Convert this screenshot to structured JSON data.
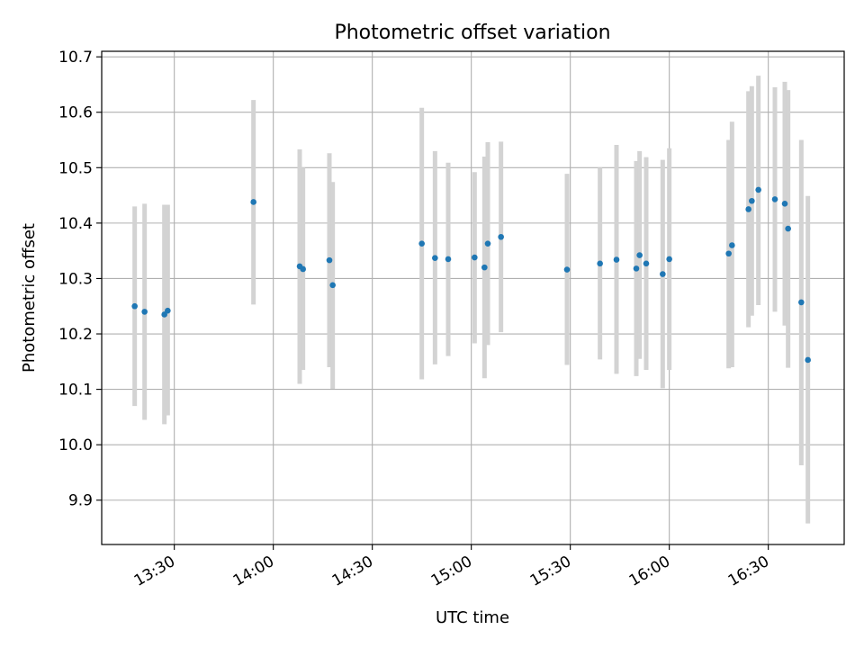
{
  "chart_data": {
    "type": "scatter",
    "title": "Photometric offset variation",
    "xlabel": "UTC time",
    "ylabel": "Photometric offset",
    "xlim": [
      "13:08",
      "16:53"
    ],
    "ylim": [
      9.82,
      10.71
    ],
    "x_ticks": [
      "13:30",
      "14:00",
      "14:30",
      "15:00",
      "15:30",
      "16:00",
      "16:30"
    ],
    "y_ticks": [
      9.9,
      10.0,
      10.1,
      10.2,
      10.3,
      10.4,
      10.5,
      10.6,
      10.7
    ],
    "y_tick_labels": [
      "9.9",
      "10.0",
      "10.1",
      "10.2",
      "10.3",
      "10.4",
      "10.5",
      "10.6",
      "10.7"
    ],
    "grid": true,
    "marker_color": "#1f77b4",
    "errorbar_color": "#d3d3d3",
    "points": [
      {
        "t": "13:18",
        "y": 10.25,
        "lo": 10.07,
        "hi": 10.43
      },
      {
        "t": "13:21",
        "y": 10.24,
        "lo": 10.045,
        "hi": 10.435
      },
      {
        "t": "13:27",
        "y": 10.235,
        "lo": 10.037,
        "hi": 10.433
      },
      {
        "t": "13:28",
        "y": 10.242,
        "lo": 10.053,
        "hi": 10.433
      },
      {
        "t": "13:54",
        "y": 10.438,
        "lo": 10.253,
        "hi": 10.622
      },
      {
        "t": "14:08",
        "y": 10.322,
        "lo": 10.11,
        "hi": 10.533
      },
      {
        "t": "14:09",
        "y": 10.317,
        "lo": 10.135,
        "hi": 10.5
      },
      {
        "t": "14:17",
        "y": 10.333,
        "lo": 10.14,
        "hi": 10.526
      },
      {
        "t": "14:18",
        "y": 10.288,
        "lo": 10.101,
        "hi": 10.474
      },
      {
        "t": "14:45",
        "y": 10.363,
        "lo": 10.118,
        "hi": 10.608
      },
      {
        "t": "14:49",
        "y": 10.337,
        "lo": 10.145,
        "hi": 10.53
      },
      {
        "t": "14:53",
        "y": 10.335,
        "lo": 10.16,
        "hi": 10.509
      },
      {
        "t": "15:01",
        "y": 10.338,
        "lo": 10.183,
        "hi": 10.492
      },
      {
        "t": "15:04",
        "y": 10.32,
        "lo": 10.12,
        "hi": 10.52
      },
      {
        "t": "15:05",
        "y": 10.363,
        "lo": 10.18,
        "hi": 10.546
      },
      {
        "t": "15:09",
        "y": 10.375,
        "lo": 10.203,
        "hi": 10.547
      },
      {
        "t": "15:29",
        "y": 10.316,
        "lo": 10.144,
        "hi": 10.489
      },
      {
        "t": "15:39",
        "y": 10.327,
        "lo": 10.154,
        "hi": 10.5
      },
      {
        "t": "15:44",
        "y": 10.334,
        "lo": 10.128,
        "hi": 10.541
      },
      {
        "t": "15:50",
        "y": 10.318,
        "lo": 10.124,
        "hi": 10.512
      },
      {
        "t": "15:51",
        "y": 10.342,
        "lo": 10.155,
        "hi": 10.53
      },
      {
        "t": "15:53",
        "y": 10.327,
        "lo": 10.135,
        "hi": 10.519
      },
      {
        "t": "15:58",
        "y": 10.308,
        "lo": 10.102,
        "hi": 10.514
      },
      {
        "t": "16:00",
        "y": 10.335,
        "lo": 10.135,
        "hi": 10.535
      },
      {
        "t": "16:18",
        "y": 10.345,
        "lo": 10.138,
        "hi": 10.55
      },
      {
        "t": "16:19",
        "y": 10.36,
        "lo": 10.14,
        "hi": 10.583
      },
      {
        "t": "16:24",
        "y": 10.425,
        "lo": 10.212,
        "hi": 10.638
      },
      {
        "t": "16:25",
        "y": 10.44,
        "lo": 10.233,
        "hi": 10.647
      },
      {
        "t": "16:27",
        "y": 10.46,
        "lo": 10.252,
        "hi": 10.666
      },
      {
        "t": "16:32",
        "y": 10.443,
        "lo": 10.24,
        "hi": 10.645
      },
      {
        "t": "16:35",
        "y": 10.435,
        "lo": 10.215,
        "hi": 10.655
      },
      {
        "t": "16:36",
        "y": 10.39,
        "lo": 10.139,
        "hi": 10.64
      },
      {
        "t": "16:40",
        "y": 10.257,
        "lo": 9.963,
        "hi": 10.55
      },
      {
        "t": "16:42",
        "y": 10.153,
        "lo": 9.858,
        "hi": 10.449
      }
    ]
  }
}
